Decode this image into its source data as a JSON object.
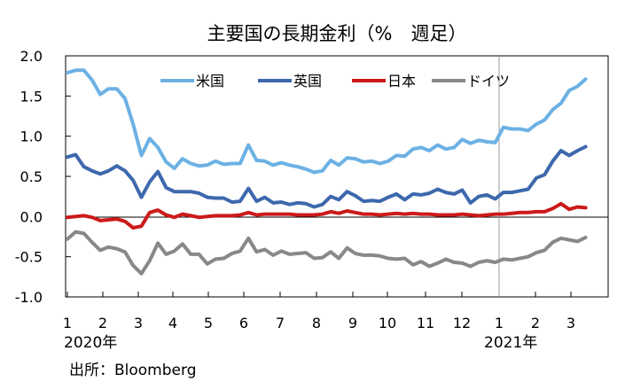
{
  "chart_data": {
    "type": "line",
    "title": "主要国の長期金利（%　週足）",
    "source": "出所：Bloomberg",
    "ylim": [
      -1.0,
      2.0
    ],
    "yticks": [
      "2.0",
      "1.5",
      "1.0",
      "0.5",
      "0.0",
      "-0.5",
      "-1.0"
    ],
    "xticks": [
      "1",
      "2",
      "3",
      "4",
      "5",
      "6",
      "7",
      "8",
      "9",
      "10",
      "11",
      "12",
      "1",
      "2",
      "3"
    ],
    "year_labels": [
      "2020年",
      "2021年"
    ],
    "legend_position": "top",
    "grid": false,
    "divider_after_week": 52,
    "series": [
      {
        "name": "米国",
        "color": "#6cb1e4",
        "values": [
          1.79,
          1.82,
          1.82,
          1.7,
          1.52,
          1.59,
          1.59,
          1.47,
          1.15,
          0.76,
          0.97,
          0.86,
          0.68,
          0.6,
          0.72,
          0.66,
          0.63,
          0.64,
          0.69,
          0.65,
          0.66,
          0.66,
          0.89,
          0.7,
          0.69,
          0.64,
          0.67,
          0.64,
          0.62,
          0.59,
          0.55,
          0.57,
          0.7,
          0.64,
          0.73,
          0.72,
          0.68,
          0.69,
          0.66,
          0.69,
          0.76,
          0.75,
          0.84,
          0.86,
          0.82,
          0.89,
          0.84,
          0.86,
          0.96,
          0.91,
          0.95,
          0.93,
          0.92,
          1.11,
          1.09,
          1.09,
          1.07,
          1.15,
          1.2,
          1.33,
          1.41,
          1.57,
          1.62,
          1.71
        ]
      },
      {
        "name": "英国",
        "color": "#3d68ad",
        "values": [
          0.74,
          0.77,
          0.62,
          0.57,
          0.53,
          0.57,
          0.63,
          0.57,
          0.45,
          0.24,
          0.43,
          0.56,
          0.36,
          0.31,
          0.31,
          0.31,
          0.29,
          0.24,
          0.23,
          0.23,
          0.18,
          0.19,
          0.35,
          0.19,
          0.24,
          0.17,
          0.18,
          0.15,
          0.17,
          0.16,
          0.12,
          0.15,
          0.25,
          0.21,
          0.31,
          0.26,
          0.19,
          0.2,
          0.19,
          0.24,
          0.28,
          0.21,
          0.28,
          0.27,
          0.29,
          0.34,
          0.3,
          0.28,
          0.33,
          0.17,
          0.25,
          0.27,
          0.22,
          0.3,
          0.3,
          0.32,
          0.34,
          0.48,
          0.52,
          0.69,
          0.82,
          0.76,
          0.82,
          0.87
        ]
      },
      {
        "name": "日本",
        "color": "#cc1a1a",
        "values": [
          -0.01,
          0.0,
          0.01,
          -0.01,
          -0.05,
          -0.04,
          -0.03,
          -0.06,
          -0.14,
          -0.12,
          0.05,
          0.08,
          0.02,
          -0.01,
          0.03,
          0.01,
          -0.01,
          0.0,
          0.01,
          0.01,
          0.01,
          0.02,
          0.05,
          0.02,
          0.03,
          0.03,
          0.03,
          0.03,
          0.02,
          0.02,
          0.02,
          0.03,
          0.06,
          0.04,
          0.07,
          0.05,
          0.03,
          0.03,
          0.02,
          0.03,
          0.04,
          0.03,
          0.04,
          0.03,
          0.03,
          0.02,
          0.02,
          0.02,
          0.03,
          0.02,
          0.01,
          0.02,
          0.03,
          0.03,
          0.04,
          0.05,
          0.05,
          0.06,
          0.06,
          0.1,
          0.16,
          0.09,
          0.12,
          0.11
        ]
      },
      {
        "name": "ドイツ",
        "color": "#888888",
        "values": [
          -0.28,
          -0.19,
          -0.21,
          -0.32,
          -0.42,
          -0.38,
          -0.4,
          -0.44,
          -0.61,
          -0.71,
          -0.55,
          -0.33,
          -0.47,
          -0.43,
          -0.34,
          -0.47,
          -0.47,
          -0.59,
          -0.53,
          -0.52,
          -0.46,
          -0.43,
          -0.27,
          -0.44,
          -0.41,
          -0.48,
          -0.43,
          -0.47,
          -0.46,
          -0.45,
          -0.52,
          -0.51,
          -0.44,
          -0.52,
          -0.39,
          -0.46,
          -0.48,
          -0.48,
          -0.49,
          -0.52,
          -0.53,
          -0.52,
          -0.6,
          -0.56,
          -0.62,
          -0.58,
          -0.53,
          -0.57,
          -0.58,
          -0.62,
          -0.57,
          -0.55,
          -0.57,
          -0.53,
          -0.54,
          -0.52,
          -0.5,
          -0.45,
          -0.42,
          -0.32,
          -0.27,
          -0.29,
          -0.31,
          -0.26
        ]
      }
    ]
  }
}
